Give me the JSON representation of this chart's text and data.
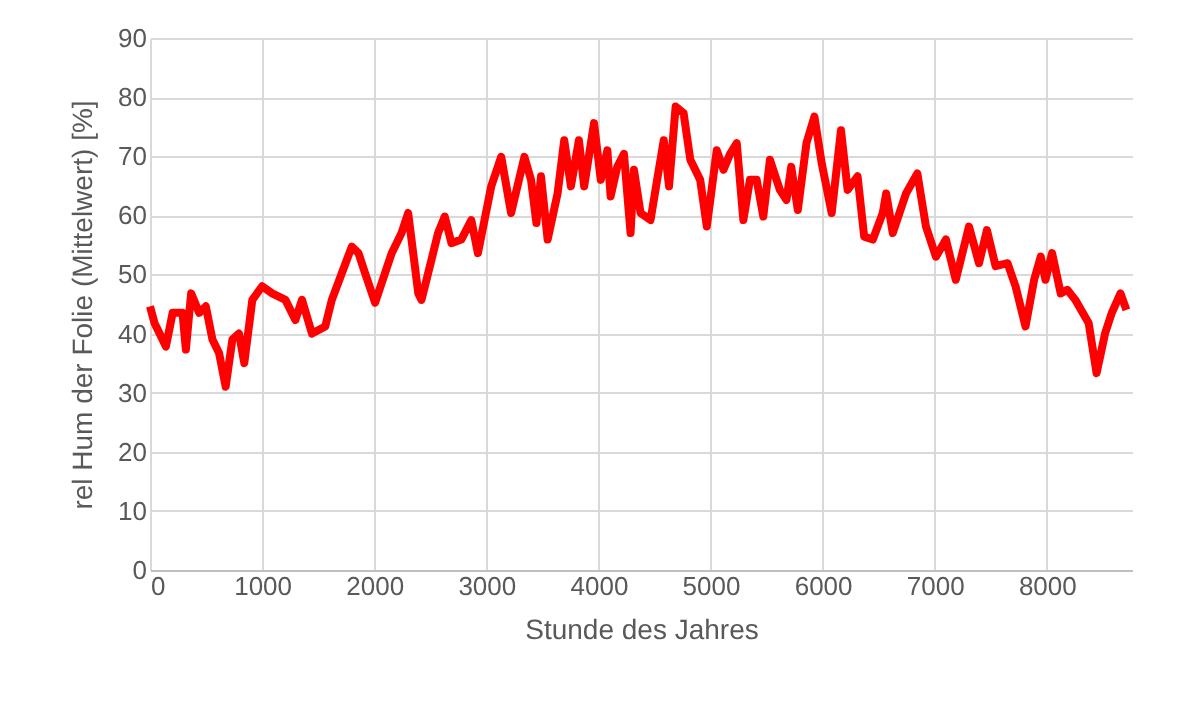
{
  "chart_data": {
    "type": "line",
    "xlabel": "Stunde des Jahres",
    "ylabel": "rel Hum der Folie (Mittelwert) [%]",
    "x": [
      0,
      40,
      142,
      202,
      290,
      320,
      367,
      439,
      498,
      557,
      616,
      675,
      735,
      794,
      841,
      913,
      1000,
      1090,
      1208,
      1297,
      1356,
      1445,
      1563,
      1622,
      1711,
      1800,
      1860,
      1919,
      2008,
      2096,
      2156,
      2244,
      2303,
      2393,
      2422,
      2511,
      2570,
      2629,
      2689,
      2777,
      2866,
      2925,
      3044,
      3133,
      3221,
      3340,
      3399,
      3447,
      3488,
      3547,
      3636,
      3695,
      3755,
      3826,
      3873,
      3961,
      4021,
      4080,
      4109,
      4168,
      4228,
      4287,
      4317,
      4376,
      4465,
      4524,
      4583,
      4630,
      4689,
      4760,
      4820,
      4908,
      4967,
      5056,
      5116,
      5175,
      5234,
      5293,
      5352,
      5412,
      5471,
      5530,
      5619,
      5678,
      5720,
      5779,
      5856,
      5927,
      5992,
      6081,
      6164,
      6223,
      6312,
      6371,
      6448,
      6537,
      6567,
      6626,
      6744,
      6845,
      6922,
      7011,
      7100,
      7188,
      7306,
      7395,
      7466,
      7543,
      7650,
      7721,
      7810,
      7887,
      7946,
      7988,
      8047,
      8124,
      8183,
      8254,
      8373,
      8444,
      8521,
      8580,
      8657,
      8710
    ],
    "series": [
      {
        "color": "#ff0000",
        "values": [
          44.6,
          41.8,
          37.8,
          43.5,
          43.5,
          37.3,
          46.8,
          43.5,
          44.6,
          39,
          36.7,
          31,
          39,
          40,
          35,
          45.7,
          48,
          46.8,
          45.7,
          42.3,
          45.7,
          40,
          41.2,
          45.7,
          50.2,
          54.7,
          53.6,
          50.2,
          45.2,
          50.2,
          53.6,
          57,
          60.4,
          46.8,
          45.7,
          52.5,
          57,
          59.8,
          55.3,
          55.9,
          59.2,
          53.6,
          64.9,
          69.9,
          60.4,
          69.9,
          66,
          58.7,
          66.6,
          55.9,
          63.7,
          72.7,
          64.9,
          72.7,
          64.9,
          75.6,
          66,
          71,
          63.2,
          68.2,
          70.4,
          57,
          67.7,
          60.4,
          59.2,
          66,
          72.7,
          64.9,
          78.4,
          77.3,
          69.4,
          66,
          58.1,
          71,
          67.7,
          70.4,
          72.2,
          59.2,
          66,
          66,
          59.8,
          69.4,
          64.3,
          62.6,
          68.2,
          60.9,
          72.2,
          76.7,
          68.8,
          60.4,
          74.4,
          64.3,
          66.6,
          56.4,
          55.9,
          60.4,
          63.7,
          57,
          63.7,
          67.1,
          58.1,
          53,
          55.9,
          49.1,
          58.1,
          51.9,
          57.5,
          51.4,
          51.9,
          48,
          41.2,
          49.1,
          53,
          49.1,
          53.6,
          46.8,
          47.4,
          45.7,
          41.8,
          33.3,
          40.1,
          43.5,
          46.8,
          44
        ]
      }
    ],
    "xlim": [
      0,
      8760
    ],
    "xticks": [
      0,
      1000,
      2000,
      3000,
      4000,
      5000,
      6000,
      7000,
      8000
    ],
    "ylim": [
      0,
      90
    ],
    "yticks": [
      0,
      10,
      20,
      30,
      40,
      50,
      60,
      70,
      80,
      90
    ],
    "grid": true,
    "marker": "none",
    "line_style": "solid"
  }
}
